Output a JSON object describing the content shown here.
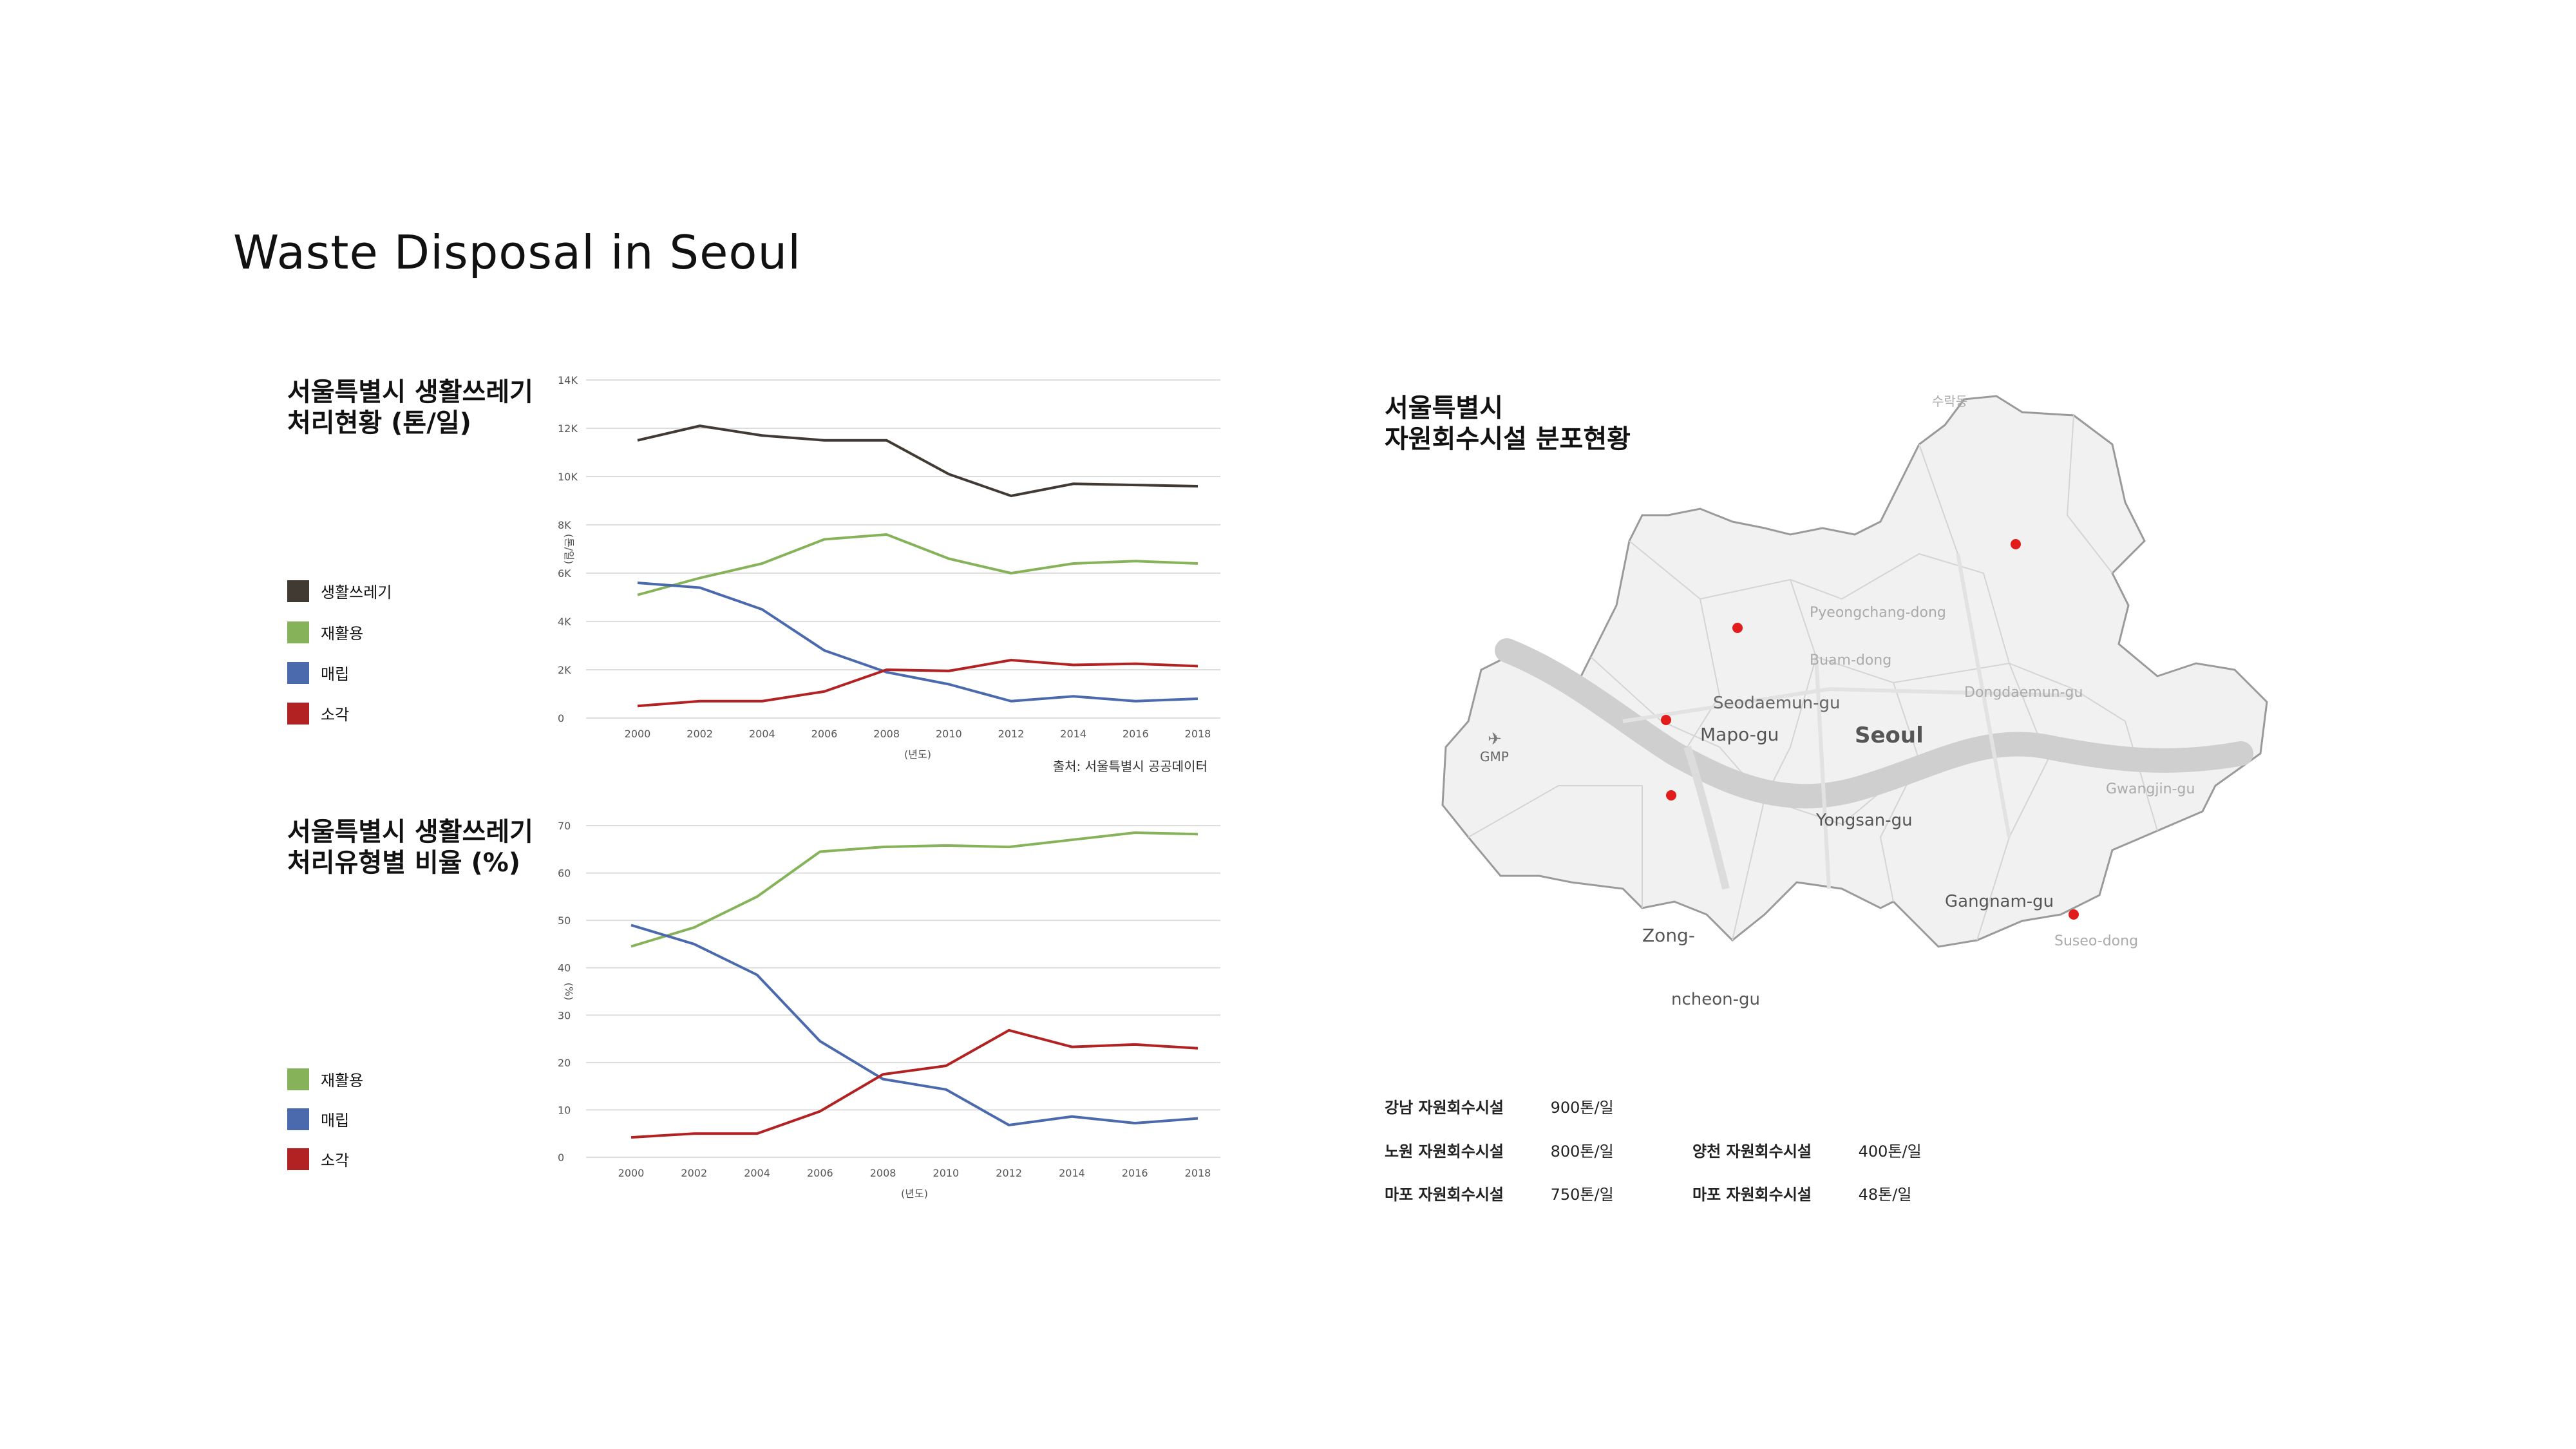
{
  "page_title": "Waste Disposal in Seoul",
  "chart_data": [
    {
      "type": "line",
      "title": "서울특별시 생활쓰레기 처리현황 (톤/일)",
      "ylabel": "(톤/일)",
      "xlabel": "(년도)",
      "source": "출처: 서울특별시 공공데이터",
      "x": [
        2000,
        2002,
        2004,
        2006,
        2008,
        2010,
        2012,
        2014,
        2016,
        2018
      ],
      "yticks": [
        "0",
        "2K",
        "4K",
        "6K",
        "8K",
        "10K",
        "12K",
        "14K"
      ],
      "ylim": [
        0,
        14000
      ],
      "grid": true,
      "series": [
        {
          "name": "생활쓰레기",
          "color": "#403a33",
          "values": [
            11500,
            12100,
            11700,
            11500,
            11500,
            10100,
            9200,
            9700,
            9650,
            9600
          ]
        },
        {
          "name": "재활용",
          "color": "#86b35a",
          "values": [
            5100,
            5800,
            6400,
            7400,
            7600,
            6600,
            6000,
            6400,
            6500,
            6400
          ]
        },
        {
          "name": "매립",
          "color": "#4a6aad",
          "values": [
            5600,
            5400,
            4500,
            2800,
            1900,
            1400,
            700,
            900,
            700,
            800
          ]
        },
        {
          "name": "소각",
          "color": "#b22222",
          "values": [
            500,
            700,
            700,
            1100,
            2000,
            1950,
            2400,
            2200,
            2250,
            2150
          ]
        }
      ]
    },
    {
      "type": "line",
      "title": "서울특별시 생활쓰레기 처리유형별 비율 (%)",
      "ylabel": "(%)",
      "xlabel": "(년도)",
      "x": [
        2000,
        2002,
        2004,
        2006,
        2008,
        2010,
        2012,
        2014,
        2016,
        2018
      ],
      "yticks": [
        "0",
        "10",
        "20",
        "30",
        "40",
        "50",
        "60",
        "70"
      ],
      "ylim": [
        0,
        70
      ],
      "grid": true,
      "series": [
        {
          "name": "재활용",
          "color": "#86b35a",
          "values": [
            44.5,
            48.5,
            55,
            64.5,
            65.5,
            65.8,
            65.5,
            67,
            68.5,
            68.2
          ]
        },
        {
          "name": "매립",
          "color": "#4a6aad",
          "values": [
            49,
            45,
            38.5,
            24.5,
            16.5,
            14.3,
            6.8,
            8.6,
            7.2,
            8.2
          ]
        },
        {
          "name": "소각",
          "color": "#b22222",
          "values": [
            4.2,
            5,
            5,
            9.7,
            17.5,
            19.3,
            26.8,
            23.3,
            23.8,
            23
          ]
        }
      ]
    }
  ],
  "map": {
    "title": "서울특별시 자원회수시설 분포현황",
    "labels": [
      "Pyeongchang-dong",
      "Buam-dong",
      "Seodaemun-gu",
      "Mapo-gu",
      "Seoul",
      "Dongdaemun-gu",
      "GMP",
      "Yongsan-gu",
      "Gwangjin-gu",
      "Gangnam-gu",
      "Suseo-dong",
      "Zong-",
      "ncheon-gu",
      "수락동"
    ],
    "marker_color": "#e21b1b",
    "facilities": [
      {
        "name": "강남 자원회수시설",
        "capacity": "900톤/일"
      },
      {
        "name": "노원 자원회수시설",
        "capacity": "800톤/일"
      },
      {
        "name": "양천 자원회수시설",
        "capacity": "400톤/일"
      },
      {
        "name": "마포 자원회수시설",
        "capacity": "750톤/일"
      },
      {
        "name": "마포 자원회수시설",
        "capacity": "48톤/일"
      }
    ]
  },
  "colors": {
    "grid": "#dddddd",
    "axis_text": "#555555",
    "map_fill": "#f1f1f1",
    "map_border": "#9a9a9a",
    "river": "#cfcfcf"
  }
}
